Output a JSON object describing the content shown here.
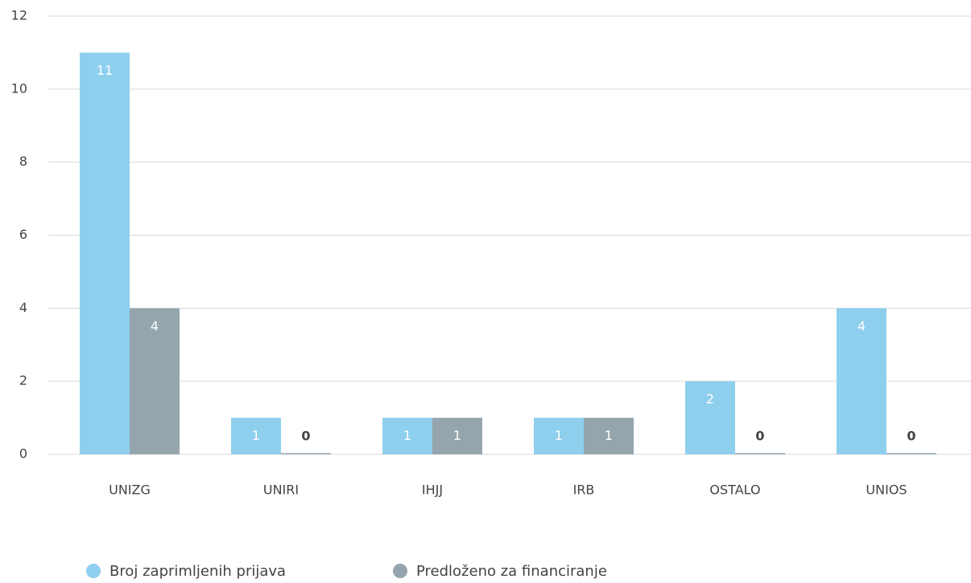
{
  "chart_data": {
    "type": "bar",
    "categories": [
      "UNIZG",
      "UNIRI",
      "IHJJ",
      "IRB",
      "OSTALO",
      "UNIOS"
    ],
    "series": [
      {
        "name": "Broj zaprimljenih prijava",
        "color": "#8ecfee",
        "values": [
          11,
          1,
          1,
          1,
          2,
          4
        ]
      },
      {
        "name": "Predloženo za financiranje",
        "color": "#95a5ad",
        "values": [
          4,
          0,
          1,
          1,
          0,
          0
        ]
      }
    ],
    "ylim": [
      0,
      12
    ],
    "yticks": [
      0,
      2,
      4,
      6,
      8,
      10,
      12
    ],
    "grid": true,
    "legend": "bottom"
  }
}
